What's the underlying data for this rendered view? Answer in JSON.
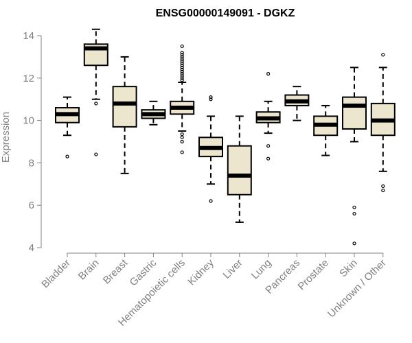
{
  "chart_data": {
    "type": "boxplot",
    "title": "ENSG00000149091 - DGKZ",
    "xlabel": "",
    "ylabel": "Expression",
    "ylim": [
      4,
      14
    ],
    "yticks": [
      "4",
      "6",
      "8",
      "10",
      "12",
      "14"
    ],
    "categories": [
      "Bladder",
      "Brain",
      "Breast",
      "Gastric",
      "Hematopoietic cells",
      "Kidney",
      "Liver",
      "Lung",
      "Pancreas",
      "Prostate",
      "Skin",
      "Unknown / Other"
    ],
    "boxes": [
      {
        "name": "Bladder",
        "whisker_low": 9.3,
        "q1": 9.9,
        "median": 10.3,
        "q3": 10.6,
        "whisker_high": 11.1,
        "outliers": [
          8.3
        ]
      },
      {
        "name": "Brain",
        "whisker_low": 11.0,
        "q1": 12.6,
        "median": 13.4,
        "q3": 13.6,
        "whisker_high": 14.3,
        "outliers": [
          10.8,
          8.4
        ]
      },
      {
        "name": "Breast",
        "whisker_low": 7.5,
        "q1": 9.7,
        "median": 10.8,
        "q3": 11.6,
        "whisker_high": 13.0,
        "outliers": []
      },
      {
        "name": "Gastric",
        "whisker_low": 9.8,
        "q1": 10.1,
        "median": 10.3,
        "q3": 10.5,
        "whisker_high": 10.9,
        "outliers": []
      },
      {
        "name": "Hematopoietic cells",
        "whisker_low": 9.5,
        "q1": 10.3,
        "median": 10.6,
        "q3": 10.9,
        "whisker_high": 11.8,
        "outliers": [
          8.5,
          9.0,
          9.2,
          9.35,
          11.9,
          12.0,
          12.1,
          12.2,
          12.3,
          12.4,
          12.5,
          12.6,
          12.7,
          12.8,
          12.9,
          13.0,
          13.1,
          13.2,
          13.5
        ]
      },
      {
        "name": "Kidney",
        "whisker_low": 7.0,
        "q1": 8.3,
        "median": 8.7,
        "q3": 9.2,
        "whisker_high": 10.2,
        "outliers": [
          11.1,
          11.0,
          6.2
        ]
      },
      {
        "name": "Liver",
        "whisker_low": 5.2,
        "q1": 6.5,
        "median": 7.4,
        "q3": 8.8,
        "whisker_high": 10.2,
        "outliers": []
      },
      {
        "name": "Lung",
        "whisker_low": 9.4,
        "q1": 9.9,
        "median": 10.1,
        "q3": 10.4,
        "whisker_high": 10.9,
        "outliers": [
          12.2,
          8.8,
          8.2
        ]
      },
      {
        "name": "Pancreas",
        "whisker_low": 10.0,
        "q1": 10.7,
        "median": 10.9,
        "q3": 11.2,
        "whisker_high": 11.6,
        "outliers": []
      },
      {
        "name": "Prostate",
        "whisker_low": 8.35,
        "q1": 9.3,
        "median": 9.8,
        "q3": 10.2,
        "whisker_high": 10.7,
        "outliers": []
      },
      {
        "name": "Skin",
        "whisker_low": 9.0,
        "q1": 9.6,
        "median": 10.7,
        "q3": 11.1,
        "whisker_high": 12.5,
        "outliers": [
          5.9,
          5.6,
          4.2
        ]
      },
      {
        "name": "Unknown / Other",
        "whisker_low": 7.6,
        "q1": 9.3,
        "median": 10.0,
        "q3": 10.8,
        "whisker_high": 12.5,
        "outliers": [
          13.1,
          6.9,
          6.7
        ]
      }
    ]
  },
  "colors": {
    "box_fill": "#ede6cf",
    "box_stroke": "#000000",
    "axis": "#808080",
    "tick_text": "#808080",
    "title_text": "#000000"
  }
}
